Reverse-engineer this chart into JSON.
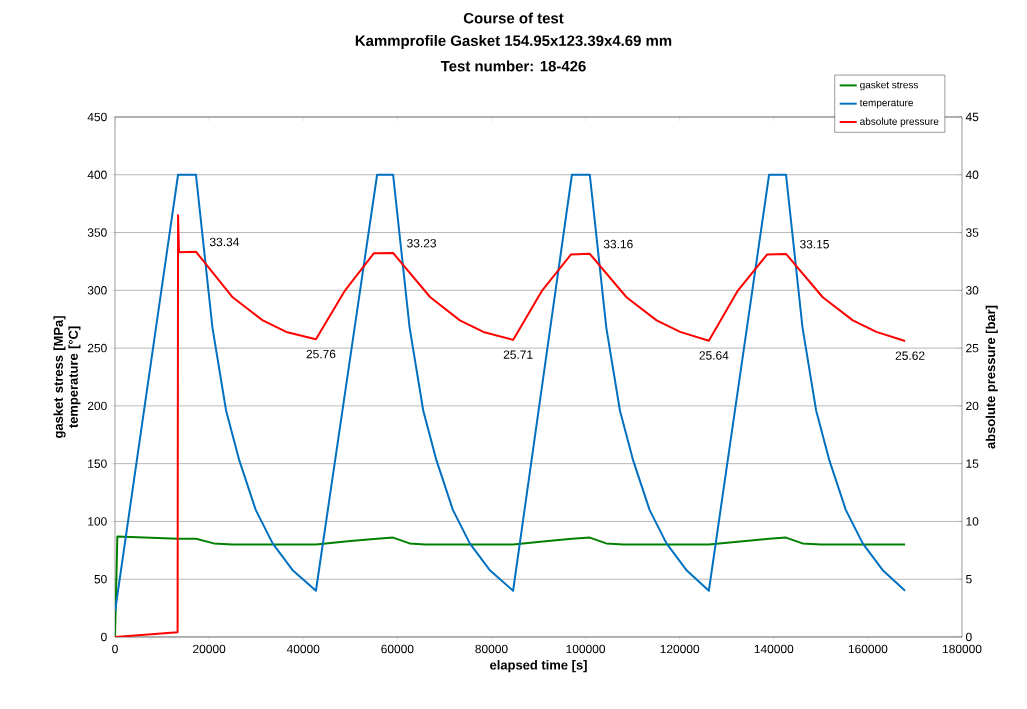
{
  "chart_data": {
    "type": "line",
    "title": "Course of test",
    "subtitle": "Kammprofile Gasket 154.95x123.39x4.69 mm",
    "annotations": [
      "Test number: 18-426"
    ],
    "xlabel": "elapsed time [s]",
    "ylabel": "gasket stress [MPa] temperature [°C]",
    "y2label": "absolute pressure [bar]",
    "xlim": [
      0,
      180000
    ],
    "xticks": [
      0,
      20000,
      40000,
      60000,
      80000,
      100000,
      120000,
      140000,
      160000,
      180000
    ],
    "ylim": [
      0,
      450
    ],
    "yticks": [
      0,
      50,
      100,
      150,
      200,
      250,
      300,
      350,
      400,
      450
    ],
    "y2lim": [
      0,
      45
    ],
    "y2ticks": [
      0,
      5,
      10,
      15,
      20,
      25,
      30,
      35,
      40,
      45
    ],
    "grid": "y",
    "legend": "top right",
    "marker": "none",
    "line_style": "solid",
    "series": [
      {
        "name": "gasket stress",
        "color": "#008000",
        "x": [
          0,
          500,
          13400,
          17200,
          21000,
          25000,
          42700,
          50000,
          55700,
          59100,
          62600,
          66000,
          84600,
          92000,
          97100,
          100900,
          104400,
          108000,
          126200,
          134000,
          139000,
          142600,
          146100,
          150000,
          167900
        ],
        "values": [
          0,
          87,
          85,
          85,
          81,
          80,
          80,
          83,
          85,
          86,
          81,
          80,
          80,
          83,
          85,
          86,
          81,
          80,
          80,
          83,
          85,
          86,
          81,
          80,
          80
        ]
      },
      {
        "name": "temperature",
        "color": "#0070c0",
        "x": [
          0,
          13400,
          17200,
          20700,
          23600,
          26400,
          29900,
          33500,
          37700,
          42700,
          55700,
          59100,
          62600,
          65500,
          68300,
          71800,
          75400,
          79600,
          84600,
          97100,
          100900,
          104400,
          107300,
          110100,
          113600,
          117200,
          121400,
          126200,
          139000,
          142600,
          146100,
          149000,
          151800,
          155300,
          158900,
          163100,
          167900
        ],
        "values": [
          22,
          400,
          400,
          268,
          196,
          153,
          110,
          81,
          58,
          40,
          400,
          400,
          268,
          196,
          153,
          110,
          81,
          58,
          40,
          400,
          400,
          268,
          196,
          153,
          110,
          81,
          58,
          40,
          400,
          400,
          268,
          196,
          153,
          110,
          81,
          58,
          40
        ]
      },
      {
        "name": "absolute pressure",
        "color": "#ff0000",
        "axis": "y2",
        "x": [
          0,
          13300,
          13400,
          13600,
          17200,
          25000,
          31400,
          36400,
          42700,
          48900,
          55000,
          59100,
          67000,
          73300,
          78300,
          84600,
          90800,
          96900,
          100900,
          108700,
          115100,
          120100,
          126200,
          132400,
          138600,
          142600,
          150400,
          156800,
          161800,
          167900
        ],
        "values": [
          0,
          0.4,
          36.5,
          33.3,
          33.34,
          29.4,
          27.4,
          26.4,
          25.76,
          30.0,
          33.2,
          33.23,
          29.4,
          27.4,
          26.4,
          25.71,
          30.0,
          33.1,
          33.16,
          29.4,
          27.4,
          26.4,
          25.64,
          30.0,
          33.1,
          33.15,
          29.4,
          27.4,
          26.4,
          25.62
        ],
        "value_labels": [
          null,
          null,
          null,
          null,
          "33.34",
          null,
          null,
          null,
          "25.76",
          null,
          null,
          "33.23",
          null,
          null,
          null,
          "25.71",
          null,
          null,
          "33.16",
          null,
          null,
          null,
          "25.64",
          null,
          null,
          "33.15",
          null,
          null,
          null,
          "25.62"
        ]
      }
    ]
  }
}
